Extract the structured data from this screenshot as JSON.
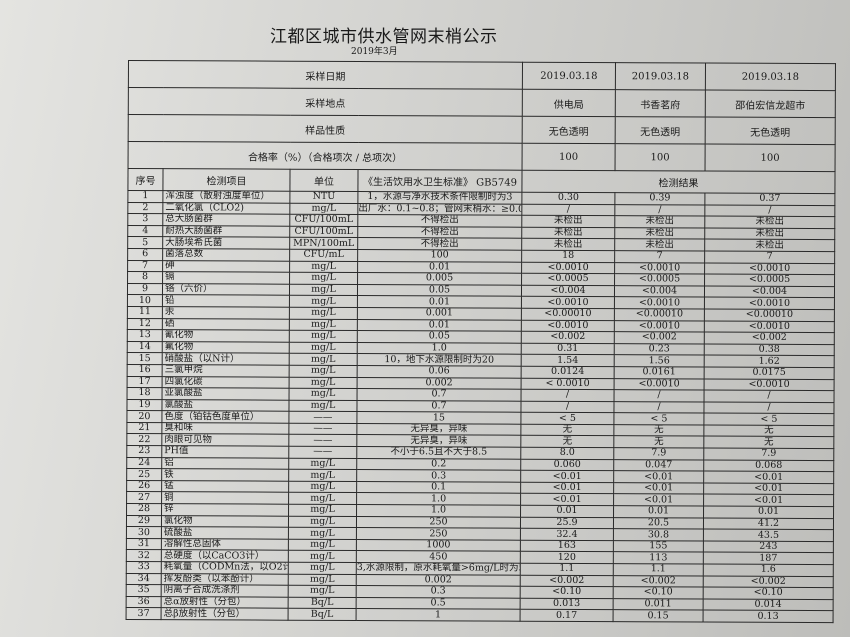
{
  "title": "江都区城市供水管网末梢公示",
  "subtitle": "2019年3月",
  "meta": [
    {
      "label": "采样日期",
      "values": [
        "2019.03.18",
        "2019.03.18",
        "2019.03.18"
      ]
    },
    {
      "label": "采样地点",
      "values": [
        "供电局",
        "书香茗府",
        "邵伯宏信龙超市"
      ]
    },
    {
      "label": "样品性质",
      "values": [
        "无色透明",
        "无色透明",
        "无色透明"
      ]
    },
    {
      "label": "合格率（%）（合格项次 / 总项次）",
      "values": [
        "100",
        "100",
        "100"
      ]
    }
  ],
  "headers": {
    "seq": "序号",
    "item": "检测项目",
    "unit": "单位",
    "standard": "《生活饮用水卫生标准》 GB5749",
    "results": "检测结果"
  },
  "rows": [
    [
      "1",
      "浑浊度（散射浊度单位）",
      "NTU",
      "1，水源与净水技术条件限制时为3",
      "0.30",
      "0.39",
      "0.37"
    ],
    [
      "2",
      "二氧化氯（CLO2)",
      "mg/L",
      "出厂水：0.1~0.8；管网末梢水：≥0.02",
      "/",
      "/",
      "/"
    ],
    [
      "3",
      "总大肠菌群",
      "CFU/100mL",
      "不得检出",
      "未检出",
      "未检出",
      "未检出"
    ],
    [
      "4",
      "耐热大肠菌群",
      "CFU/100mL",
      "不得检出",
      "未检出",
      "未检出",
      "未检出"
    ],
    [
      "5",
      "大肠埃希氏菌",
      "MPN/100mL",
      "不得检出",
      "未检出",
      "未检出",
      "未检出"
    ],
    [
      "6",
      "菌落总数",
      "CFU/mL",
      "100",
      "18",
      "7",
      "7"
    ],
    [
      "7",
      "砷",
      "mg/L",
      "0.01",
      "<0.0010",
      "<0.0010",
      "<0.0010"
    ],
    [
      "8",
      "镉",
      "mg/L",
      "0.005",
      "<0.0005",
      "<0.0005",
      "<0.0005"
    ],
    [
      "9",
      "铬（六价）",
      "mg/L",
      "0.05",
      "<0.004",
      "<0.004",
      "<0.004"
    ],
    [
      "10",
      "铅",
      "mg/L",
      "0.01",
      "<0.0010",
      "<0.0010",
      "<0.0010"
    ],
    [
      "11",
      "汞",
      "mg/L",
      "0.001",
      "<0.00010",
      "<0.00010",
      "<0.00010"
    ],
    [
      "12",
      "硒",
      "mg/L",
      "0.01",
      "<0.0010",
      "<0.0010",
      "<0.0010"
    ],
    [
      "13",
      "氰化物",
      "mg/L",
      "0.05",
      "<0.002",
      "<0.002",
      "<0.002"
    ],
    [
      "14",
      "氟化物",
      "mg/L",
      "1.0",
      "0.31",
      "0.23",
      "0.38"
    ],
    [
      "15",
      "硝酸盐（以N计）",
      "mg/L",
      "10，地下水源限制时为20",
      "1.54",
      "1.56",
      "1.62"
    ],
    [
      "16",
      "三氯甲烷",
      "mg/L",
      "0.06",
      "0.0124",
      "0.0161",
      "0.0175"
    ],
    [
      "17",
      "四氯化碳",
      "mg/L",
      "0.002",
      "< 0.0010",
      "<0.0010",
      "<0.0010"
    ],
    [
      "18",
      "亚氯酸盐",
      "mg/L",
      "0.7",
      "/",
      "/",
      "/"
    ],
    [
      "19",
      "氯酸盐",
      "mg/L",
      "0.7",
      "/",
      "/",
      "/"
    ],
    [
      "20",
      "色度（铂钴色度单位）",
      "——",
      "15",
      "< 5",
      "< 5",
      "< 5"
    ],
    [
      "21",
      "臭和味",
      "——",
      "无异臭，异味",
      "无",
      "无",
      "无"
    ],
    [
      "22",
      "肉眼可见物",
      "——",
      "无异臭，异味",
      "无",
      "无",
      "无"
    ],
    [
      "23",
      "PH值",
      "——",
      "不小于6.5且不大于8.5",
      "8.0",
      "7.9",
      "7.9"
    ],
    [
      "24",
      "铝",
      "mg/L",
      "0.2",
      "0.060",
      "0.047",
      "0.068"
    ],
    [
      "25",
      "铁",
      "mg/L",
      "0.3",
      "<0.01",
      "<0.01",
      "<0.01"
    ],
    [
      "26",
      "锰",
      "mg/L",
      "0.1",
      "<0.01",
      "<0.01",
      "<0.01"
    ],
    [
      "27",
      "铜",
      "mg/L",
      "1.0",
      "<0.01",
      "<0.01",
      "<0.01"
    ],
    [
      "28",
      "锌",
      "mg/L",
      "1.0",
      "0.01",
      "0.01",
      "0.01"
    ],
    [
      "29",
      "氯化物",
      "mg/L",
      "250",
      "25.9",
      "20.5",
      "41.2"
    ],
    [
      "30",
      "硫酸盐",
      "mg/L",
      "250",
      "32.4",
      "30.8",
      "43.5"
    ],
    [
      "31",
      "溶解性总固体",
      "mg/L",
      "1000",
      "163",
      "155",
      "243"
    ],
    [
      "32",
      "总硬度（以CaCO3计）",
      "mg/L",
      "450",
      "120",
      "113",
      "187"
    ],
    [
      "33",
      "耗氧量（CODMn法，以O2计）",
      "mg/L",
      "3,水源限制，原水耗氧量>6mg/L时为5",
      "1.1",
      "1.1",
      "1.6"
    ],
    [
      "34",
      "挥发酚类（以苯酚计）",
      "mg/L",
      "0.002",
      "<0.002",
      "<0.002",
      "<0.002"
    ],
    [
      "35",
      "阴离子合成洗涤剂",
      "mg/L",
      "0.3",
      "<0.10",
      "<0.10",
      "<0.10"
    ],
    [
      "36",
      "总α放射性（分包）",
      "Bq/L",
      "0.5",
      "0.013",
      "0.011",
      "0.014"
    ],
    [
      "37",
      "总β放射性（分包）",
      "Bq/L",
      "1",
      "0.17",
      "0.15",
      "0.13"
    ]
  ]
}
